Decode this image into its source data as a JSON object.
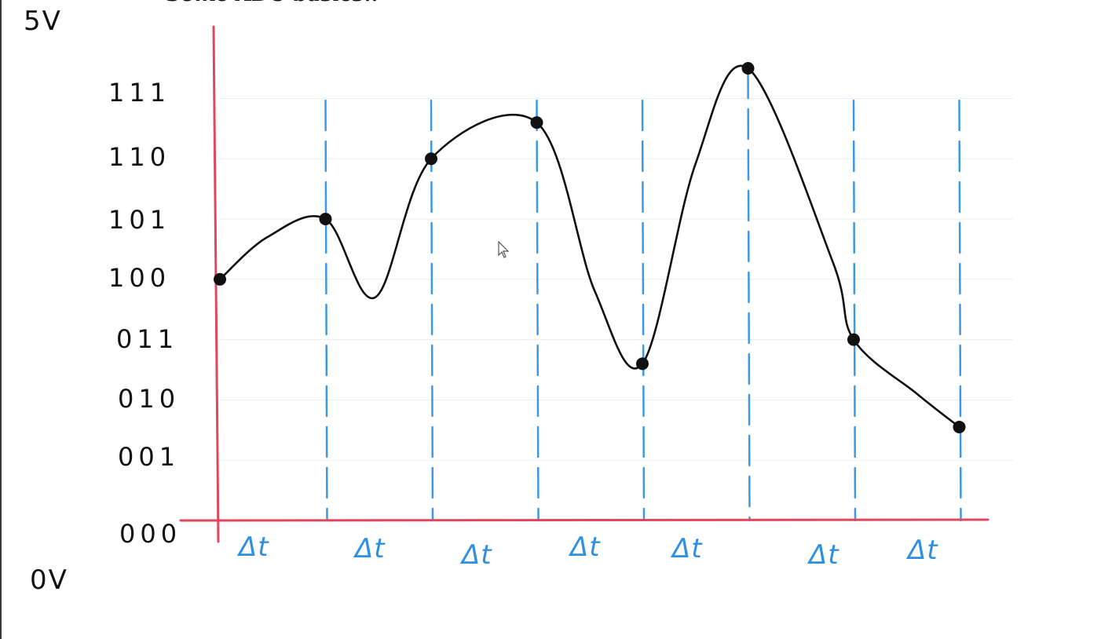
{
  "heading": "Some ADC basics..",
  "voltage_top": "5V",
  "voltage_bottom": "0V",
  "codes": [
    "111",
    "110",
    "101",
    "100",
    "011",
    "010",
    "001",
    "000"
  ],
  "interval_label": "Δt",
  "interval_count": 7,
  "samples": [
    {
      "t": 0,
      "code": 4.0
    },
    {
      "t": 1,
      "code": 5.0
    },
    {
      "t": 2,
      "code": 6.0
    },
    {
      "t": 3,
      "code": 6.6
    },
    {
      "t": 4,
      "code": 2.6
    },
    {
      "t": 5,
      "code": 7.5
    },
    {
      "t": 6,
      "code": 3.0
    },
    {
      "t": 7,
      "code": 1.55
    }
  ],
  "colors": {
    "axis": "#e0475e",
    "sample_lines": "#3d98e3",
    "signal": "#111111",
    "grid": "#ececec"
  }
}
